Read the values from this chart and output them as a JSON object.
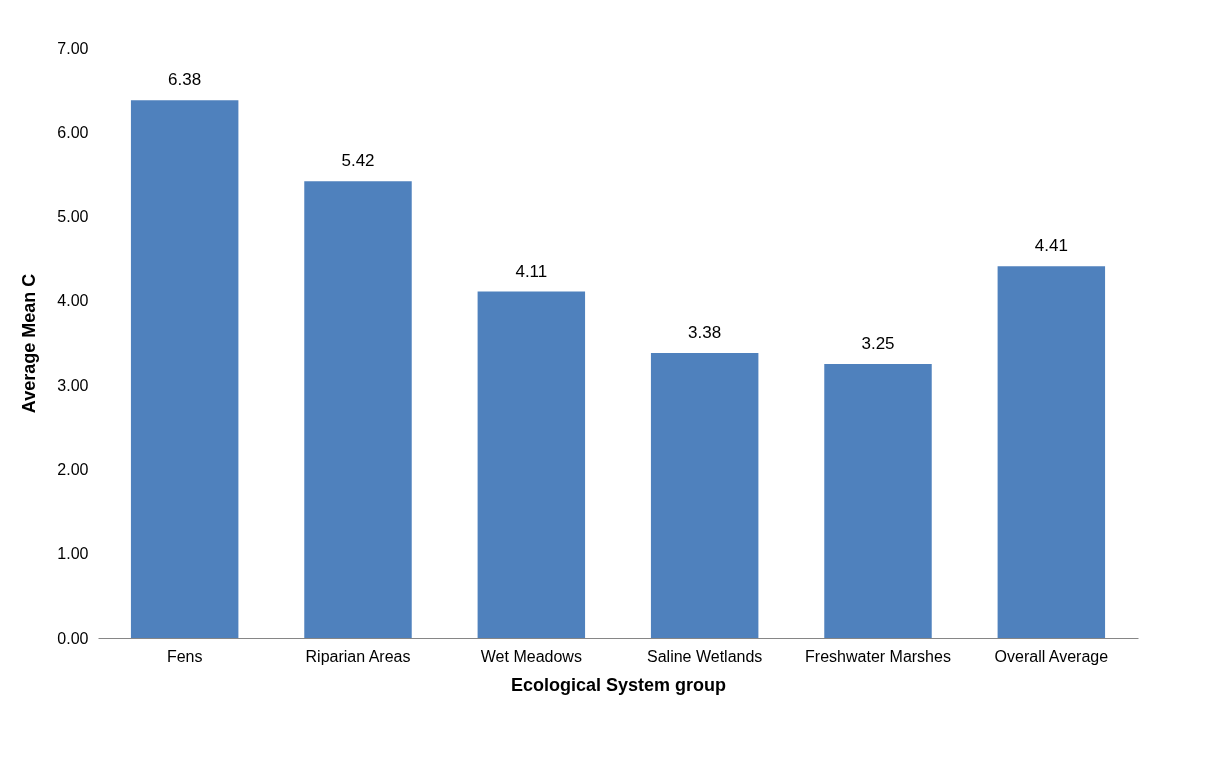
{
  "chart_data": {
    "type": "bar",
    "xlabel": "Ecological System group",
    "ylabel": "Average Mean C",
    "categories": [
      "Fens",
      "Riparian Areas",
      "Wet Meadows",
      "Saline Wetlands",
      "Freshwater Marshes",
      "Overall Average"
    ],
    "values": [
      6.38,
      5.42,
      4.11,
      3.38,
      3.25,
      4.41
    ],
    "color": "#4f81bd",
    "ylim": [
      0,
      7
    ],
    "yticks": [
      {
        "value": 0,
        "label": "0.00"
      },
      {
        "value": 1,
        "label": "1.00"
      },
      {
        "value": 2,
        "label": "2.00"
      },
      {
        "value": 3,
        "label": "3.00"
      },
      {
        "value": 4,
        "label": "4.00"
      },
      {
        "value": 5,
        "label": "5.00"
      },
      {
        "value": 6,
        "label": "6.00"
      },
      {
        "value": 7,
        "label": "7.00"
      }
    ],
    "data_labels": true,
    "grid": false
  }
}
